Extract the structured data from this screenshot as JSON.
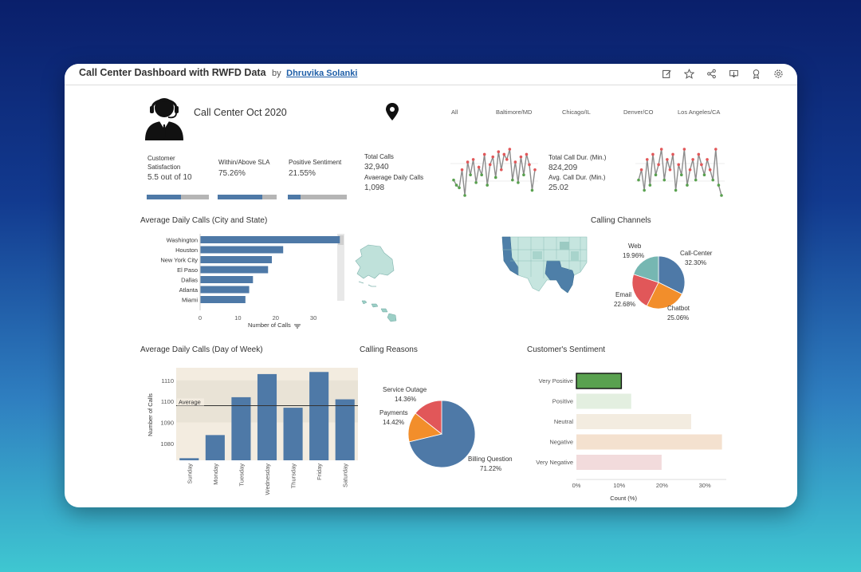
{
  "window": {
    "title": "Call Center Dashboard with RWFD Data",
    "by": "by",
    "author": "Dhruvika Solanki",
    "toolbar_icons": [
      "edit-icon",
      "star-icon",
      "share-icon",
      "download-icon",
      "award-icon",
      "settings-icon"
    ]
  },
  "header": {
    "title": "Call Center Oct 2020",
    "location_icon": "map-pin-icon",
    "city_filters": [
      "All",
      "Baltimore/MD",
      "Chicago/IL",
      "Denver/CO",
      "Los Angeles/CA"
    ]
  },
  "kpis": {
    "csat_label_1": "Customer",
    "csat_label_2": "Satisfaction",
    "csat_value": "5.5 out of 10",
    "csat_fraction": 0.55,
    "sla_label": "Within/Above SLA",
    "sla_value": "75.26%",
    "sla_fraction": 0.7526,
    "sentiment_label": "Positive Sentiment",
    "sentiment_value": "21.55%",
    "sentiment_fraction": 0.2155,
    "total_calls_label": "Total Calls",
    "total_calls_value": "32,940",
    "avg_daily_label": "Avaerage Daily Calls",
    "avg_daily_value": "1,098",
    "total_dur_label": "Total Call Dur. (Min.)",
    "total_dur_value": "824,209",
    "avg_dur_label": "Avg. Call Dur. (Min.)",
    "avg_dur_value": "25.02"
  },
  "sparkline_calls": [
    1050,
    1040,
    1035,
    1070,
    1020,
    1085,
    1060,
    1090,
    1045,
    1075,
    1060,
    1100,
    1040,
    1080,
    1095,
    1055,
    1105,
    1070,
    1100,
    1090,
    1110,
    1050,
    1085,
    1045,
    1095,
    1060,
    1100,
    1080,
    1030,
    1070
  ],
  "sparkline_duration": [
    24,
    26,
    22,
    28,
    23,
    29,
    25,
    27,
    30,
    24,
    28,
    26,
    29,
    22,
    27,
    25,
    30,
    23,
    26,
    28,
    24,
    29,
    27,
    25,
    28,
    26,
    24,
    30,
    23,
    21
  ],
  "city_chart": {
    "title": "Average Daily Calls (City and State)",
    "cities": [
      "Washington",
      "Houston",
      "New York City",
      "El Paso",
      "Dallas",
      "Atlanta",
      "Miami"
    ],
    "values": [
      37,
      22,
      19,
      18,
      14,
      13,
      12
    ],
    "ticks": [
      "0",
      "10",
      "20",
      "30"
    ],
    "xlabel": "Number of Calls",
    "sort_icon": "sort-icon"
  },
  "channels": {
    "title": "Calling Channels",
    "labels": [
      {
        "name": "Web",
        "pct": "19.96%"
      },
      {
        "name": "Call-Center",
        "pct": "32.30%"
      },
      {
        "name": "Email",
        "pct": "22.68%"
      },
      {
        "name": "Chatbot",
        "pct": "25.06%"
      }
    ]
  },
  "weekday_chart": {
    "title": "Average Daily Calls (Day of Week)",
    "ylabel": "Number of Calls",
    "yticks": [
      "1110",
      "1100",
      "1090",
      "1080"
    ],
    "avg_label": "Average",
    "days": [
      "Sunday",
      "Monday",
      "Tuesday",
      "Wednesday",
      "Thursday",
      "Friday",
      "Saturday"
    ]
  },
  "reasons": {
    "title": "Calling Reasons",
    "items": [
      {
        "name": "Service Outage",
        "pct": "14.36%"
      },
      {
        "name": "Payments",
        "pct": "14.42%"
      },
      {
        "name": "Billing Question",
        "pct": "71.22%"
      }
    ]
  },
  "sentiment_chart": {
    "title": "Customer's Sentiment",
    "categories": [
      "Very Positive",
      "Positive",
      "Neutral",
      "Negative",
      "Very Negative"
    ],
    "xticks": [
      "0%",
      "10%",
      "20%",
      "30%"
    ],
    "xlabel": "Count (%)"
  },
  "chart_data": [
    {
      "type": "bar",
      "title": "Average Daily Calls (City and State)",
      "orientation": "horizontal",
      "categories": [
        "Washington",
        "Houston",
        "New York City",
        "El Paso",
        "Dallas",
        "Atlanta",
        "Miami"
      ],
      "values": [
        37,
        22,
        19,
        18,
        14,
        13,
        12
      ],
      "xlabel": "Number of Calls",
      "xlim": [
        0,
        38
      ]
    },
    {
      "type": "pie",
      "title": "Calling Channels",
      "labels": [
        "Call-Center",
        "Chatbot",
        "Email",
        "Web"
      ],
      "values": [
        32.3,
        25.06,
        22.68,
        19.96
      ],
      "colors": [
        "#4e79a7",
        "#f28e2b",
        "#e15759",
        "#76b7b2"
      ]
    },
    {
      "type": "bar",
      "title": "Average Daily Calls (Day of Week)",
      "categories": [
        "Sunday",
        "Monday",
        "Tuesday",
        "Wednesday",
        "Thursday",
        "Friday",
        "Saturday"
      ],
      "values": [
        1073,
        1084,
        1102,
        1113,
        1097,
        1114,
        1101
      ],
      "ylabel": "Number of Calls",
      "ylim": [
        1072,
        1116
      ],
      "average": 1098
    },
    {
      "type": "pie",
      "title": "Calling Reasons",
      "labels": [
        "Billing Question",
        "Payments",
        "Service Outage"
      ],
      "values": [
        71.22,
        14.42,
        14.36
      ],
      "colors": [
        "#4e79a7",
        "#f28e2b",
        "#e15759"
      ]
    },
    {
      "type": "bar",
      "title": "Customer's Sentiment",
      "orientation": "horizontal",
      "categories": [
        "Very Positive",
        "Positive",
        "Neutral",
        "Negative",
        "Very Negative"
      ],
      "values": [
        10.5,
        12.8,
        26.8,
        34,
        19.9
      ],
      "colors": [
        "#59a14f",
        "#e3efe0",
        "#f3ece0",
        "#f4e1cf",
        "#f2dbdc"
      ],
      "xlabel": "Count (%)",
      "xlim": [
        0,
        35
      ]
    }
  ]
}
